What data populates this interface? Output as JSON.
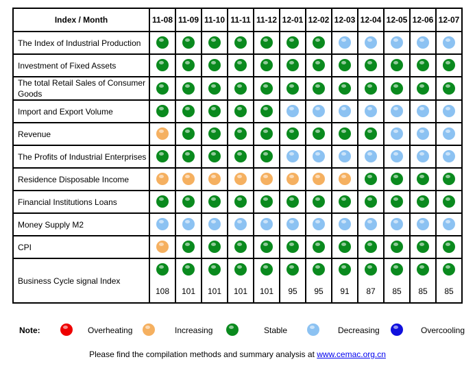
{
  "table": {
    "header": "Index / Month",
    "months": [
      "11-08",
      "11-09",
      "11-10",
      "11-11",
      "11-12",
      "12-01",
      "12-02",
      "12-03",
      "12-04",
      "12-05",
      "12-06",
      "12-07"
    ],
    "rows": [
      {
        "label": "The Index of Industrial Production",
        "signals": [
          "stable",
          "stable",
          "stable",
          "stable",
          "stable",
          "stable",
          "stable",
          "decreasing",
          "decreasing",
          "decreasing",
          "decreasing",
          "decreasing"
        ]
      },
      {
        "label": "Investment of Fixed Assets",
        "signals": [
          "stable",
          "stable",
          "stable",
          "stable",
          "stable",
          "stable",
          "stable",
          "stable",
          "stable",
          "stable",
          "stable",
          "stable"
        ]
      },
      {
        "label": "The total Retail Sales of Consumer Goods",
        "signals": [
          "stable",
          "stable",
          "stable",
          "stable",
          "stable",
          "stable",
          "stable",
          "stable",
          "stable",
          "stable",
          "stable",
          "stable"
        ]
      },
      {
        "label": "Import and Export Volume",
        "signals": [
          "stable",
          "stable",
          "stable",
          "stable",
          "stable",
          "decreasing",
          "decreasing",
          "decreasing",
          "decreasing",
          "decreasing",
          "decreasing",
          "decreasing"
        ]
      },
      {
        "label": "Revenue",
        "signals": [
          "increasing",
          "stable",
          "stable",
          "stable",
          "stable",
          "stable",
          "stable",
          "stable",
          "stable",
          "decreasing",
          "decreasing",
          "decreasing"
        ]
      },
      {
        "label": "The Profits of Industrial Enterprises",
        "signals": [
          "stable",
          "stable",
          "stable",
          "stable",
          "stable",
          "decreasing",
          "decreasing",
          "decreasing",
          "decreasing",
          "decreasing",
          "decreasing",
          "decreasing"
        ]
      },
      {
        "label": "Residence Disposable Income",
        "signals": [
          "increasing",
          "increasing",
          "increasing",
          "increasing",
          "increasing",
          "increasing",
          "increasing",
          "increasing",
          "stable",
          "stable",
          "stable",
          "stable"
        ]
      },
      {
        "label": "Financial Institutions Loans",
        "signals": [
          "stable",
          "stable",
          "stable",
          "stable",
          "stable",
          "stable",
          "stable",
          "stable",
          "stable",
          "stable",
          "stable",
          "stable"
        ]
      },
      {
        "label": "Money Supply M2",
        "signals": [
          "decreasing",
          "decreasing",
          "decreasing",
          "decreasing",
          "decreasing",
          "decreasing",
          "decreasing",
          "decreasing",
          "decreasing",
          "decreasing",
          "decreasing",
          "decreasing"
        ]
      },
      {
        "label": "CPI",
        "signals": [
          "increasing",
          "stable",
          "stable",
          "stable",
          "stable",
          "stable",
          "stable",
          "stable",
          "stable",
          "stable",
          "stable",
          "stable"
        ]
      }
    ],
    "bci": {
      "label": "Business Cycle signal Index",
      "signals": [
        "stable",
        "stable",
        "stable",
        "stable",
        "stable",
        "stable",
        "stable",
        "stable",
        "stable",
        "stable",
        "stable",
        "stable"
      ],
      "values": [
        "108",
        "101",
        "101",
        "101",
        "101",
        "95",
        "95",
        "91",
        "87",
        "85",
        "85",
        "85"
      ]
    }
  },
  "legend": {
    "title": "Note:",
    "items": [
      {
        "key": "overheating",
        "label": "Overheating",
        "color": "#ee0000"
      },
      {
        "key": "increasing",
        "label": "Increasing",
        "color": "#f5b060"
      },
      {
        "key": "stable",
        "label": "Stable",
        "color": "#0a8a1e"
      },
      {
        "key": "decreasing",
        "label": "Decreasing",
        "color": "#8cc2f2"
      },
      {
        "key": "overcooling",
        "label": "Overcooling",
        "color": "#1010dd"
      }
    ]
  },
  "footer": {
    "text": "Please find the compilation methods and summary analysis at ",
    "link": "www.cemac.org.cn"
  }
}
